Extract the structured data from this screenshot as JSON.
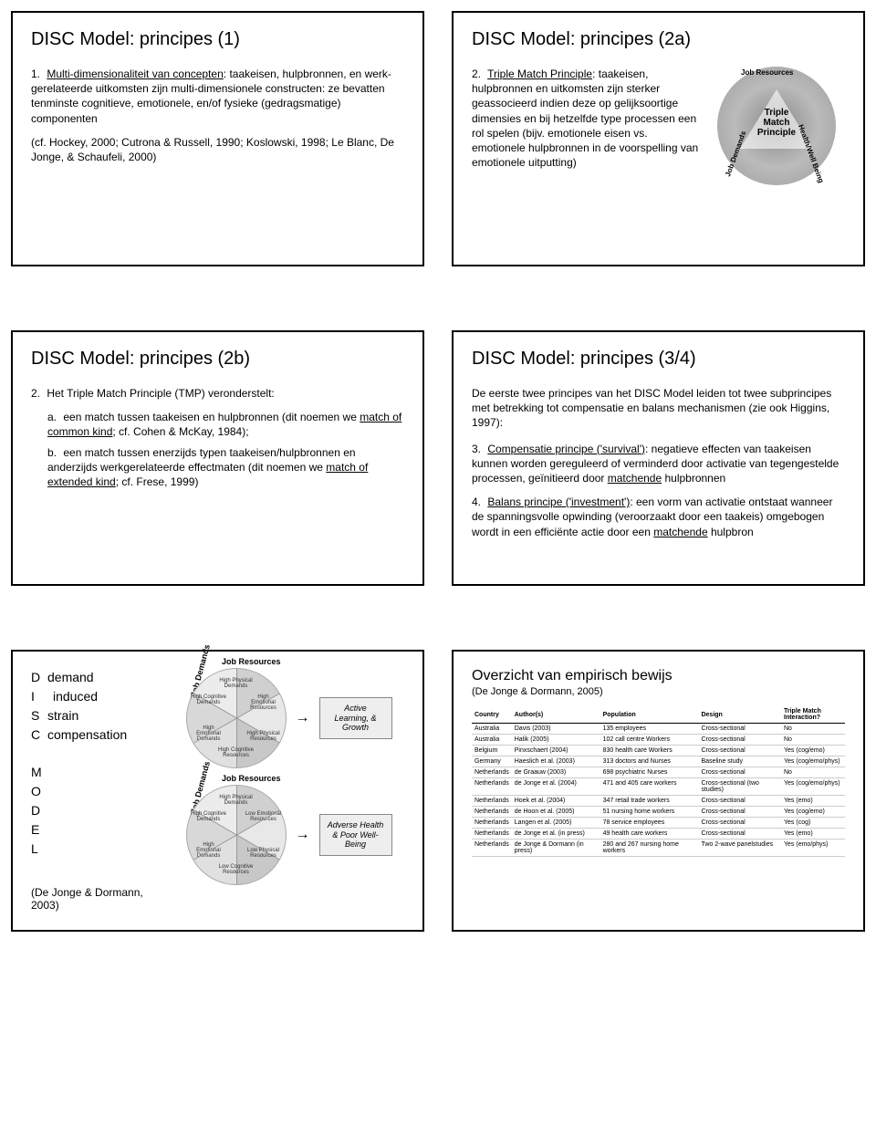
{
  "slide1": {
    "title": "DISC Model: principes (1)",
    "item_num": "1.",
    "item_label": "Multi-dimensionaliteit van concepten",
    "item_text": ": taakeisen, hulpbronnen, en werk-gerelateerde uitkomsten zijn multi-dimensionele constructen: ze bevatten tenminste cognitieve, emotionele, en/of fysieke (gedragsmatige) componenten",
    "ref": "(cf. Hockey, 2000; Cutrona & Russell, 1990; Koslowski, 1998; Le Blanc, De Jonge, & Schaufeli, 2000)"
  },
  "slide2": {
    "title": "DISC Model: principes (2a)",
    "item_num": "2.",
    "item_label": "Triple Match Principle",
    "item_text": ": taakeisen, hulpbronnen en uitkomsten zijn sterker geassocieerd indien deze op gelijksoortige dimensies en bij hetzelfde type processen een rol spelen (bijv. emotionele eisen vs. emotionele hulpbronnen in de voorspelling van emotionele uitputting)",
    "tmp_center": "Triple\nMatch\nPrinciple",
    "arc_top": "Job Resources",
    "arc_right": "Health/Well Being",
    "arc_left": "Job Demands"
  },
  "slide3": {
    "title": "DISC Model: principes (2b)",
    "item_num": "2.",
    "item_lead": "Het Triple Match Principle (TMP) veronderstelt:",
    "a_let": "a.",
    "a_text": "een match tussen taakeisen en hulpbronnen (dit noemen we ",
    "a_u": "match of common kind",
    "a_tail": "; cf. Cohen & McKay, 1984);",
    "b_let": "b.",
    "b_text": "een match tussen enerzijds typen taakeisen/hulpbronnen en anderzijds werkgerelateerde effectmaten (dit noemen we ",
    "b_u": "match of extended kind",
    "b_tail": "; cf. Frese, 1999)"
  },
  "slide4": {
    "title": "DISC Model: principes (3/4)",
    "intro": "De eerste twee principes van het DISC Model leiden tot twee subprincipes met betrekking tot compensatie en balans mechanismen (zie ook Higgins, 1997):",
    "p3_num": "3.",
    "p3_label": "Compensatie principe ('survival')",
    "p3_text": ": negatieve effecten van taakeisen kunnen worden gereguleerd of verminderd door activatie van tegengestelde processen, geïnitieerd door ",
    "p3_u": "matchende",
    "p3_tail": " hulpbronnen",
    "p4_num": "4.",
    "p4_label": "Balans principe ('investment')",
    "p4_text": ": een vorm van activatie ontstaat wanneer de spanningsvolle opwinding (veroorzaakt door een taakeis) omgebogen wordt in een efficiënte actie door een ",
    "p4_u": "matchende",
    "p4_tail": " hulpbron"
  },
  "slide5": {
    "acronym": [
      {
        "l": "D",
        "w": "demand"
      },
      {
        "l": "I",
        "w": "induced"
      },
      {
        "l": "S",
        "w": "strain"
      },
      {
        "l": "C",
        "w": "compensation"
      }
    ],
    "model_letters": [
      "M",
      "O",
      "D",
      "E",
      "L"
    ],
    "ref": "(De Jonge & Dormann, 2003)",
    "arc_demands": "Job Demands",
    "arc_resources": "Job Resources",
    "outcome1": "Active Learning, & Growth",
    "outcome2": "Adverse Health & Poor Well-Being",
    "wheel1_segs": [
      "High Physical Demands",
      "High Emotional Resources",
      "High Physical Resources",
      "High Cognitive Resources",
      "High Emotional Demands",
      "High Cognitive Demands"
    ],
    "wheel2_segs": [
      "High Physical Demands",
      "Low Emotional Resources",
      "Low Physical Resources",
      "Low Cognitive Resources",
      "High Emotional Demands",
      "High Cognitive Demands"
    ]
  },
  "slide6": {
    "title": "Overzicht van empirisch bewijs",
    "sub": "(De Jonge & Dormann, 2005)",
    "columns": [
      "Country",
      "Author(s)",
      "Population",
      "Design",
      "Triple Match Interaction?"
    ],
    "rows": [
      [
        "Australia",
        "Davis (2003)",
        "135 employees",
        "Cross-sectional",
        "No"
      ],
      [
        "Australia",
        "Halik (2005)",
        "102 call centre Workers",
        "Cross-sectional",
        "No"
      ],
      [
        "Belgium",
        "Pinxschaert (2004)",
        "830 health care Workers",
        "Cross-sectional",
        "Yes (cog/emo)"
      ],
      [
        "Germany",
        "Haeslich et al. (2003)",
        "313 doctors and Nurses",
        "Baseline study",
        "Yes (cog/emo/phys)"
      ],
      [
        "Netherlands",
        "de Graauw (2003)",
        "698 psychiatric Nurses",
        "Cross-sectional",
        "No"
      ],
      [
        "Netherlands",
        "de Jonge et al. (2004)",
        "471 and 405 care workers",
        "Cross-sectional (two studies)",
        "Yes (cog/emo/phys)"
      ],
      [
        "Netherlands",
        "Hoek et al. (2004)",
        "347 retail trade workers",
        "Cross-sectional",
        "Yes (emo)"
      ],
      [
        "Netherlands",
        "de Hoon et al. (2005)",
        "51 nursing home workers",
        "Cross-sectional",
        "Yes (cog/emo)"
      ],
      [
        "Netherlands",
        "Langen et al. (2005)",
        "78 service employees",
        "Cross-sectional",
        "Yes (cog)"
      ],
      [
        "Netherlands",
        "de Jonge et al. (in press)",
        "49 health care workers",
        "Cross-sectional",
        "Yes (emo)"
      ],
      [
        "Netherlands",
        "de Jonge & Dormann (in press)",
        "280 and 267 nursing home workers",
        "Two 2-wave panelstudies",
        "Yes (emo/phys)"
      ]
    ]
  }
}
